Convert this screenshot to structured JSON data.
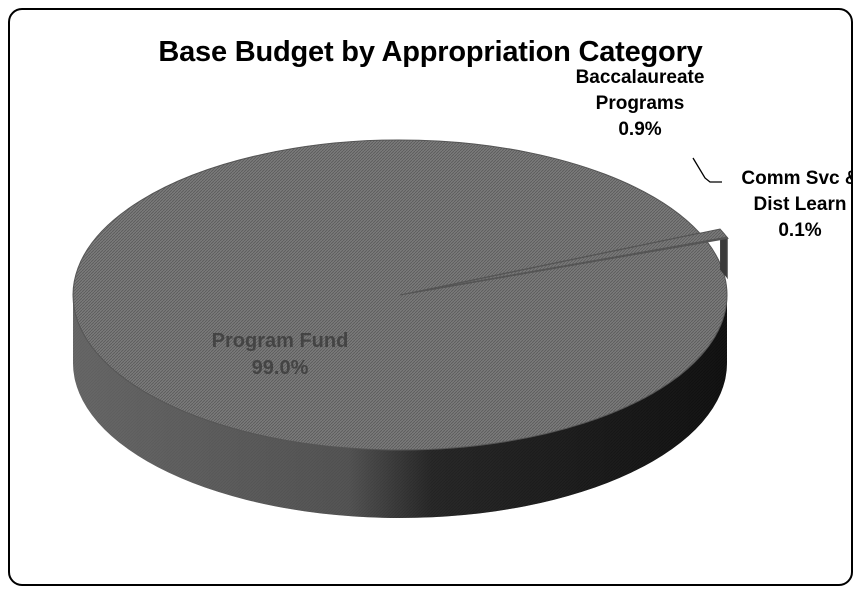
{
  "chart_data": {
    "type": "pie",
    "title": "Base Budget by Appropriation Category",
    "slices": [
      {
        "label": [
          "Program Fund"
        ],
        "value": 99.0,
        "value_text": "99.0%",
        "color": "#6f6f6f",
        "exploded": false
      },
      {
        "label": [
          "Baccalaureate",
          "Programs"
        ],
        "value": 0.9,
        "value_text": "0.9%",
        "color": "#6f6f6f",
        "exploded": true
      },
      {
        "label": [
          "Comm Svc &",
          "Dist Learn"
        ],
        "value": 0.1,
        "value_text": "0.1%",
        "color": "#6f6f6f",
        "exploded": true
      }
    ],
    "style": "3d",
    "legend": "none"
  }
}
